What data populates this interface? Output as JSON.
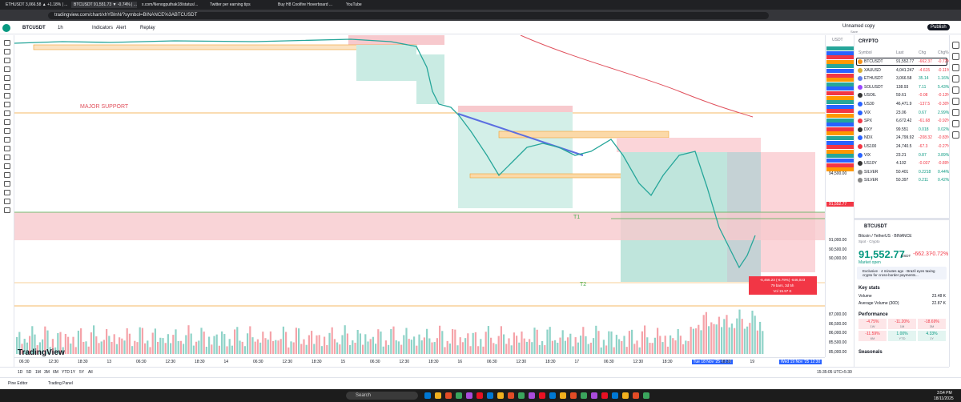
{
  "browser": {
    "tabs": [
      "ETHUSDT 3,066.58 ▲ +1.18% | ...",
      "BTCUSDT 91,551.73 ▼ -0.74% | ...",
      "x.com/Nenogputhak18/status/...",
      "Twitter per earning tips",
      "Buy H8 Coolfire Hoverboard ...",
      "YouTube"
    ],
    "url": "tradingview.com/chart/xhYBlnN/?symbol=BINANCE%3ABTCUSDT"
  },
  "toolbar": {
    "symbol": "BTCUSDT",
    "interval": "1h",
    "items": [
      "Indicators",
      "Alert",
      "Replay"
    ],
    "layout_name": "Unnamed copy",
    "layout_state": "Save",
    "publish": "Publish"
  },
  "chart": {
    "annotations": {
      "major_support": "MAJOR SUPPORT",
      "t1": "T1",
      "t2": "T2"
    },
    "position_label": [
      "-6,466.23 (-6.79%) -646,023",
      "79 bars, 3d 5h",
      "Vol 15.97 K"
    ],
    "price_axis": {
      "currency": "USDT",
      "current": "91,552.77",
      "labels": [
        "94,500.00",
        "91,000.00",
        "90,500.00",
        "90,000.00",
        "87,000.00",
        "86,500.00",
        "86,000.00",
        "85,500.00",
        "85,000.00"
      ]
    },
    "time_axis": [
      "06:30",
      "12:30",
      "18:30",
      "13",
      "06:30",
      "12:30",
      "18:30",
      "14",
      "06:30",
      "12:30",
      "18:30",
      "15",
      "06:30",
      "12:30",
      "18:30",
      "16",
      "06:30",
      "12:30",
      "18:30",
      "17",
      "06:30",
      "12:30",
      "18:30",
      "Tue 18 Nov '25 03:30",
      "18:30",
      "19",
      "Wed 19 Nov '25 12:30"
    ],
    "watermark": "TradingView"
  },
  "watchlist": {
    "title": "CRYPTO",
    "columns": [
      "Symbol",
      "Last",
      "Chg",
      "Chg%"
    ],
    "rows": [
      [
        "BTCUSDT",
        "91,552.77",
        "-662.37",
        "-0.72%"
      ],
      [
        "XAUUSD",
        "4,041.247",
        "-4.615",
        "-0.11%"
      ],
      [
        "ETHUSDT",
        "3,066.58",
        "35.14",
        "1.16%"
      ],
      [
        "SOLUSDT",
        "138.93",
        "7.11",
        "5.43%"
      ],
      [
        "USOIL",
        "59.61",
        "-0.08",
        "-0.13%"
      ],
      [
        "US30",
        "46,471.9",
        "-137.5",
        "-0.30%"
      ],
      [
        "VIX",
        "23.06",
        "0.67",
        "2.99%"
      ],
      [
        "SPX",
        "6,672.42",
        "-61.68",
        "-0.92%"
      ],
      [
        "DXY",
        "99.551",
        "0.018",
        "0.02%"
      ],
      [
        "NDX",
        "24,799.92",
        "-208.32",
        "-0.83%"
      ],
      [
        "US100",
        "24,740.5",
        "-67.3",
        "-0.27%"
      ],
      [
        "VIX",
        "23.21",
        "0.87",
        "3.89%"
      ],
      [
        "US10Y",
        "4.102",
        "-0.037",
        "-0.89%"
      ],
      [
        "SILVER",
        "50.401",
        "0.2218",
        "0.44%"
      ],
      [
        "SILVER",
        "50.397",
        "0.211",
        "0.42%"
      ]
    ]
  },
  "details": {
    "symbol": "BTCUSDT",
    "name": "Bitcoin / TetherUS · BINANCE",
    "kind": "Spot · Crypto",
    "price": "91,552.77",
    "currency": "USDT",
    "change": "-662.37",
    "change_pct": "-0.72%",
    "status": "Market open",
    "news": "Exclusive · 4 minutes ago · Brazil eyes taxing crypto for cross-border payments...",
    "key_stats": {
      "title": "Key stats",
      "rows": [
        [
          "Volume",
          "23.48 K"
        ],
        [
          "Average Volume (30D)",
          "22.87 K"
        ]
      ]
    },
    "performance": {
      "title": "Performance",
      "cells": [
        [
          "-4.75%",
          "1W"
        ],
        [
          "-11.20%",
          "1M"
        ],
        [
          "-18.69%",
          "3M"
        ],
        [
          "-11.59%",
          "6M"
        ],
        [
          "1.00%",
          "YTD"
        ],
        [
          "4.33%",
          "1Y"
        ]
      ]
    },
    "seasonals": "Seasonals"
  },
  "bottom": {
    "ranges": [
      "1D",
      "5D",
      "1M",
      "3M",
      "6M",
      "YTD",
      "1Y",
      "5Y",
      "All"
    ],
    "clock": "15:35:05 UTC+5:30",
    "panels": [
      "Pine Editor",
      "Trading Panel"
    ]
  },
  "taskbar": {
    "search": "Search",
    "time": "3:54 PM",
    "date": "18/11/2025"
  }
}
